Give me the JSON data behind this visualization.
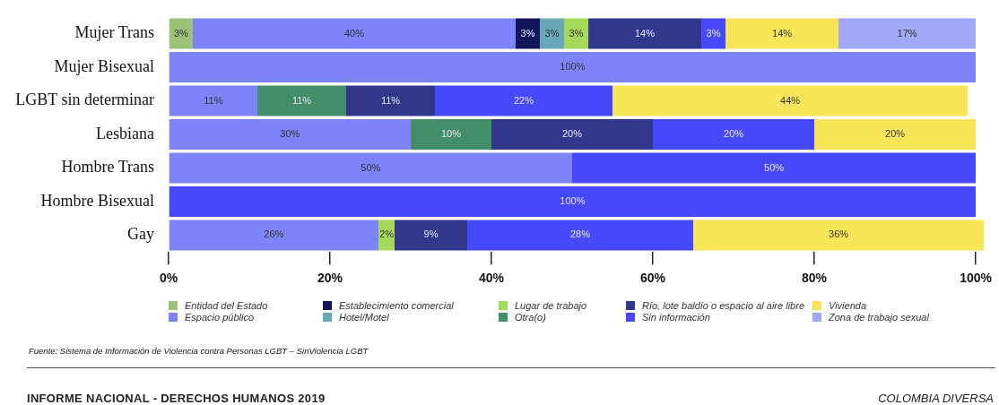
{
  "chart_data": {
    "type": "bar",
    "orientation": "horizontal",
    "stacked": true,
    "grid": false,
    "legend": "bottom",
    "categories": [
      "Mujer Trans",
      "Mujer Bisexual",
      "LGBT sin determinar",
      "Lesbiana",
      "Hombre Trans",
      "Hombre Bisexual",
      "Gay"
    ],
    "xlim": [
      0,
      101
    ],
    "xticks": [
      {
        "value": 0,
        "label": "0%"
      },
      {
        "value": 20,
        "label": "20%"
      },
      {
        "value": 40,
        "label": "40%"
      },
      {
        "value": 60,
        "label": "60%"
      },
      {
        "value": 80,
        "label": "80%"
      },
      {
        "value": 100,
        "label": "100%"
      }
    ],
    "series": [
      {
        "name": "Entidad del Estado",
        "color": "#9bc27a",
        "values": [
          3,
          null,
          null,
          null,
          null,
          null,
          null
        ],
        "value_labels": [
          "3%",
          null,
          null,
          null,
          null,
          null,
          null
        ]
      },
      {
        "name": "Espacio público",
        "color": "#7d84fb",
        "values": [
          40,
          100,
          11,
          30,
          50,
          null,
          26
        ],
        "value_labels": [
          "40%",
          "100%",
          "11%",
          "30%",
          "50%",
          null,
          "26%"
        ]
      },
      {
        "name": "Establecimiento comercial",
        "color": "#13165a",
        "values": [
          3,
          null,
          null,
          null,
          null,
          null,
          null
        ],
        "value_labels": [
          "3%",
          null,
          null,
          null,
          null,
          null,
          null
        ]
      },
      {
        "name": "Hotel/Motel",
        "color": "#68a8b6",
        "values": [
          3,
          null,
          null,
          null,
          null,
          null,
          null
        ],
        "value_labels": [
          "3%",
          null,
          null,
          null,
          null,
          null,
          null
        ]
      },
      {
        "name": "Lugar de trabajo",
        "color": "#a5d95c",
        "values": [
          3,
          null,
          null,
          null,
          null,
          null,
          2
        ],
        "value_labels": [
          "3%",
          null,
          null,
          null,
          null,
          null,
          "2%"
        ]
      },
      {
        "name": "Otra(o)",
        "color": "#438e69",
        "values": [
          null,
          null,
          11,
          10,
          null,
          null,
          null
        ],
        "value_labels": [
          null,
          null,
          "11%",
          "10%",
          null,
          null,
          null
        ]
      },
      {
        "name": "Río, lote baldío o espacio al aire libre",
        "color": "#31378a",
        "values": [
          14,
          null,
          11,
          20,
          null,
          null,
          9
        ],
        "value_labels": [
          "14%",
          null,
          "11%",
          "20%",
          null,
          null,
          "9%"
        ]
      },
      {
        "name": "Sin información",
        "color": "#4549fb",
        "values": [
          3,
          null,
          22,
          20,
          50,
          100,
          28
        ],
        "value_labels": [
          "3%",
          null,
          "22%",
          "20%",
          "50%",
          "100%",
          "28%"
        ]
      },
      {
        "name": "Vivienda",
        "color": "#f8e658",
        "values": [
          14,
          null,
          44,
          20,
          null,
          null,
          36
        ],
        "value_labels": [
          "14%",
          null,
          "44%",
          "20%",
          null,
          null,
          "36%"
        ]
      },
      {
        "name": "Zona de trabajo sexual",
        "color": "#a3a7f8",
        "values": [
          17,
          null,
          null,
          null,
          null,
          null,
          null
        ],
        "value_labels": [
          "17%",
          null,
          null,
          null,
          null,
          null,
          null
        ]
      }
    ],
    "annotations": [
      "Fuente: Sistema de Información de Violencia contra Personas LGBT – SinViolencia LGBT",
      "INFORME NACIONAL - DERECHOS HUMANOS 2019",
      "COLOMBIA DIVERSA"
    ]
  }
}
